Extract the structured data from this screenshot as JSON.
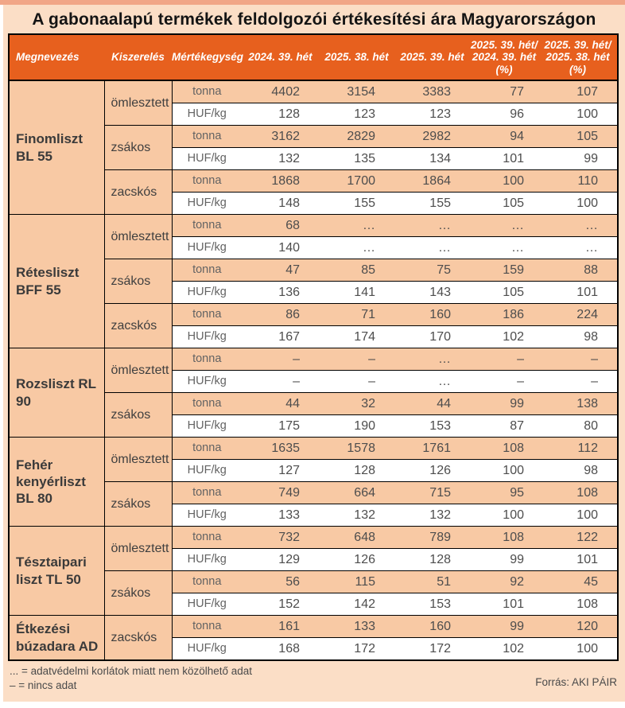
{
  "title": "A gabonaalapú termékek feldolgozói értékesítési ára Magyarországon",
  "table": {
    "headers": [
      "Megnevezés",
      "Kiszerelés",
      "Mértékegység",
      "2024. 39. hét",
      "2025. 38. hét",
      "2025. 39. hét",
      "2025. 39. hét/\n2024. 39. hét\n(%)",
      "2025. 39. hét/\n2025. 38. hét\n(%)"
    ],
    "products": [
      {
        "name": "Finomliszt BL 55",
        "packagings": [
          {
            "name": "ömlesztett",
            "rows": [
              {
                "unit": "tonna",
                "values": [
                  "4402",
                  "3154",
                  "3383",
                  "77",
                  "107"
                ]
              },
              {
                "unit": "HUF/kg",
                "values": [
                  "128",
                  "123",
                  "123",
                  "96",
                  "100"
                ]
              }
            ]
          },
          {
            "name": "zsákos",
            "rows": [
              {
                "unit": "tonna",
                "values": [
                  "3162",
                  "2829",
                  "2982",
                  "94",
                  "105"
                ]
              },
              {
                "unit": "HUF/kg",
                "values": [
                  "132",
                  "135",
                  "134",
                  "101",
                  "99"
                ]
              }
            ]
          },
          {
            "name": "zacskós",
            "rows": [
              {
                "unit": "tonna",
                "values": [
                  "1868",
                  "1700",
                  "1864",
                  "100",
                  "110"
                ]
              },
              {
                "unit": "HUF/kg",
                "values": [
                  "148",
                  "155",
                  "155",
                  "105",
                  "100"
                ]
              }
            ]
          }
        ]
      },
      {
        "name": "Rétesliszt BFF 55",
        "packagings": [
          {
            "name": "ömlesztett",
            "rows": [
              {
                "unit": "tonna",
                "values": [
                  "68",
                  "…",
                  "…",
                  "…",
                  "…"
                ]
              },
              {
                "unit": "HUF/kg",
                "values": [
                  "140",
                  "…",
                  "…",
                  "…",
                  "…"
                ]
              }
            ]
          },
          {
            "name": "zsákos",
            "rows": [
              {
                "unit": "tonna",
                "values": [
                  "47",
                  "85",
                  "75",
                  "159",
                  "88"
                ]
              },
              {
                "unit": "HUF/kg",
                "values": [
                  "136",
                  "141",
                  "143",
                  "105",
                  "101"
                ]
              }
            ]
          },
          {
            "name": "zacskós",
            "rows": [
              {
                "unit": "tonna",
                "values": [
                  "86",
                  "71",
                  "160",
                  "186",
                  "224"
                ]
              },
              {
                "unit": "HUF/kg",
                "values": [
                  "167",
                  "174",
                  "170",
                  "102",
                  "98"
                ]
              }
            ]
          }
        ]
      },
      {
        "name": "Rozsliszt RL 90",
        "packagings": [
          {
            "name": "ömlesztett",
            "rows": [
              {
                "unit": "tonna",
                "values": [
                  "–",
                  "–",
                  "…",
                  "–",
                  "–"
                ]
              },
              {
                "unit": "HUF/kg",
                "values": [
                  "–",
                  "–",
                  "…",
                  "–",
                  "–"
                ]
              }
            ]
          },
          {
            "name": "zsákos",
            "rows": [
              {
                "unit": "tonna",
                "values": [
                  "44",
                  "32",
                  "44",
                  "99",
                  "138"
                ]
              },
              {
                "unit": "HUF/kg",
                "values": [
                  "175",
                  "190",
                  "153",
                  "87",
                  "80"
                ]
              }
            ]
          }
        ]
      },
      {
        "name": "Fehér kenyérliszt BL 80",
        "packagings": [
          {
            "name": "ömlesztett",
            "rows": [
              {
                "unit": "tonna",
                "values": [
                  "1635",
                  "1578",
                  "1761",
                  "108",
                  "112"
                ]
              },
              {
                "unit": "HUF/kg",
                "values": [
                  "127",
                  "128",
                  "126",
                  "100",
                  "98"
                ]
              }
            ]
          },
          {
            "name": "zsákos",
            "rows": [
              {
                "unit": "tonna",
                "values": [
                  "749",
                  "664",
                  "715",
                  "95",
                  "108"
                ]
              },
              {
                "unit": "HUF/kg",
                "values": [
                  "133",
                  "132",
                  "132",
                  "100",
                  "100"
                ]
              }
            ]
          }
        ]
      },
      {
        "name": "Tésztaipari liszt TL 50",
        "packagings": [
          {
            "name": "ömlesztett",
            "rows": [
              {
                "unit": "tonna",
                "values": [
                  "732",
                  "648",
                  "789",
                  "108",
                  "122"
                ]
              },
              {
                "unit": "HUF/kg",
                "values": [
                  "129",
                  "126",
                  "128",
                  "99",
                  "101"
                ]
              }
            ]
          },
          {
            "name": "zsákos",
            "rows": [
              {
                "unit": "tonna",
                "values": [
                  "56",
                  "115",
                  "51",
                  "92",
                  "45"
                ]
              },
              {
                "unit": "HUF/kg",
                "values": [
                  "152",
                  "142",
                  "153",
                  "101",
                  "108"
                ]
              }
            ]
          }
        ]
      },
      {
        "name": "Étkezési búzadara AD",
        "packagings": [
          {
            "name": "zacskós",
            "rows": [
              {
                "unit": "tonna",
                "values": [
                  "161",
                  "133",
                  "160",
                  "99",
                  "120"
                ]
              },
              {
                "unit": "HUF/kg",
                "values": [
                  "168",
                  "172",
                  "172",
                  "102",
                  "100"
                ]
              }
            ]
          }
        ]
      }
    ]
  },
  "notes": {
    "ellipsis": "... = adatvédelmi korlátok miatt nem közölhető adat",
    "dash": "– = nincs adat",
    "source": "Forrás: AKI PÁIR"
  },
  "colors": {
    "header_orange": "#e7601e",
    "row_peach": "#f8c9a4",
    "page_peach": "#fbdec6",
    "top_strip": "#f1a687",
    "border": "#000000"
  }
}
